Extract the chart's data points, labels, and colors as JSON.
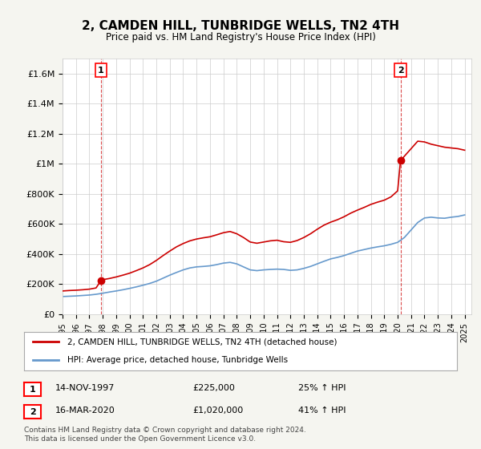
{
  "title": "2, CAMDEN HILL, TUNBRIDGE WELLS, TN2 4TH",
  "subtitle": "Price paid vs. HM Land Registry's House Price Index (HPI)",
  "legend_line1": "2, CAMDEN HILL, TUNBRIDGE WELLS, TN2 4TH (detached house)",
  "legend_line2": "HPI: Average price, detached house, Tunbridge Wells",
  "annotation1_label": "1",
  "annotation1_date": "14-NOV-1997",
  "annotation1_price": "£225,000",
  "annotation1_hpi": "25% ↑ HPI",
  "annotation2_label": "2",
  "annotation2_date": "16-MAR-2020",
  "annotation2_price": "£1,020,000",
  "annotation2_hpi": "41% ↑ HPI",
  "footer": "Contains HM Land Registry data © Crown copyright and database right 2024.\nThis data is licensed under the Open Government Licence v3.0.",
  "red_color": "#cc0000",
  "blue_color": "#6699cc",
  "background_color": "#f5f5f0",
  "plot_bg_color": "#ffffff",
  "ylim": [
    0,
    1700000
  ],
  "yticks": [
    0,
    200000,
    400000,
    600000,
    800000,
    1000000,
    1200000,
    1400000,
    1600000
  ],
  "xlim_start": 1995.0,
  "xlim_end": 2025.5,
  "sale1_x": 1997.87,
  "sale1_y": 225000,
  "sale2_x": 2020.21,
  "sale2_y": 1020000,
  "hpi_x": [
    1995,
    1995.5,
    1996,
    1996.5,
    1997,
    1997.5,
    1998,
    1998.5,
    1999,
    1999.5,
    2000,
    2000.5,
    2001,
    2001.5,
    2002,
    2002.5,
    2003,
    2003.5,
    2004,
    2004.5,
    2005,
    2005.5,
    2006,
    2006.5,
    2007,
    2007.5,
    2008,
    2008.5,
    2009,
    2009.5,
    2010,
    2010.5,
    2011,
    2011.5,
    2012,
    2012.5,
    2013,
    2013.5,
    2014,
    2014.5,
    2015,
    2015.5,
    2016,
    2016.5,
    2017,
    2017.5,
    2018,
    2018.5,
    2019,
    2019.5,
    2020,
    2020.5,
    2021,
    2021.5,
    2022,
    2022.5,
    2023,
    2023.5,
    2024,
    2024.5,
    2025
  ],
  "hpi_y": [
    118000,
    120000,
    122000,
    125000,
    128000,
    133000,
    140000,
    148000,
    155000,
    163000,
    172000,
    182000,
    193000,
    205000,
    220000,
    240000,
    260000,
    278000,
    295000,
    308000,
    315000,
    318000,
    322000,
    330000,
    340000,
    345000,
    335000,
    315000,
    295000,
    290000,
    295000,
    298000,
    300000,
    298000,
    292000,
    295000,
    305000,
    318000,
    335000,
    352000,
    368000,
    378000,
    390000,
    405000,
    420000,
    430000,
    440000,
    448000,
    455000,
    465000,
    478000,
    510000,
    560000,
    610000,
    640000,
    645000,
    640000,
    638000,
    645000,
    650000,
    660000
  ],
  "red_x": [
    1995,
    1995.5,
    1996,
    1996.5,
    1997,
    1997.5,
    1997.87,
    1998,
    1998.5,
    1999,
    1999.5,
    2000,
    2000.5,
    2001,
    2001.5,
    2002,
    2002.5,
    2003,
    2003.5,
    2004,
    2004.5,
    2005,
    2005.5,
    2006,
    2006.5,
    2007,
    2007.5,
    2008,
    2008.5,
    2009,
    2009.5,
    2010,
    2010.5,
    2011,
    2011.5,
    2012,
    2012.5,
    2013,
    2013.5,
    2014,
    2014.5,
    2015,
    2015.5,
    2016,
    2016.5,
    2017,
    2017.5,
    2018,
    2018.5,
    2019,
    2019.5,
    2020,
    2020.21,
    2020.5,
    2021,
    2021.5,
    2022,
    2022.5,
    2023,
    2023.5,
    2024,
    2024.5,
    2025
  ],
  "red_y": [
    155000,
    158000,
    160000,
    163000,
    167000,
    175000,
    225000,
    230000,
    238000,
    248000,
    260000,
    273000,
    290000,
    308000,
    330000,
    358000,
    390000,
    420000,
    448000,
    470000,
    488000,
    500000,
    508000,
    515000,
    528000,
    542000,
    550000,
    535000,
    510000,
    480000,
    472000,
    480000,
    488000,
    492000,
    482000,
    478000,
    490000,
    510000,
    535000,
    565000,
    592000,
    612000,
    628000,
    648000,
    672000,
    692000,
    710000,
    730000,
    745000,
    758000,
    780000,
    820000,
    1020000,
    1050000,
    1100000,
    1150000,
    1145000,
    1130000,
    1120000,
    1110000,
    1105000,
    1100000,
    1090000
  ]
}
